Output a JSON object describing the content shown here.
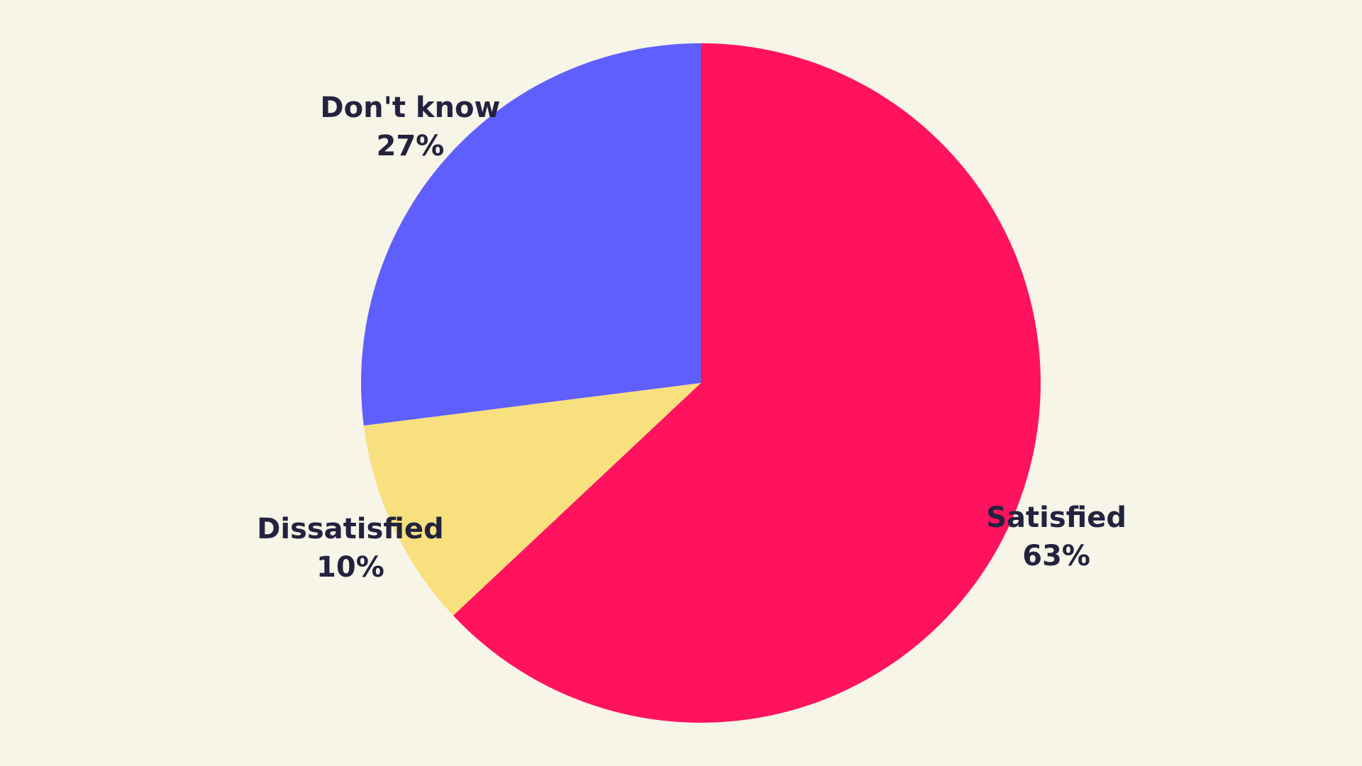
{
  "page": {
    "background": "#f7f4e8",
    "text_color": "#23233f"
  },
  "chart_data": {
    "type": "pie",
    "title": "",
    "start_angle_deg": 0,
    "direction": "clockwise",
    "slices": [
      {
        "label": "Satisfied",
        "value": 63,
        "value_label": "63%",
        "color": "#ff135e"
      },
      {
        "label": "Dissatisfied",
        "value": 10,
        "value_label": "10%",
        "color": "#f8e07f"
      },
      {
        "label": "Don't know",
        "value": 27,
        "value_label": "27%",
        "color": "#5f5ffe"
      }
    ]
  }
}
